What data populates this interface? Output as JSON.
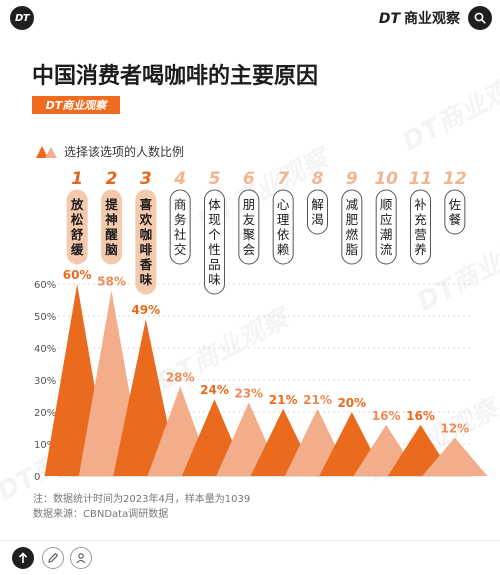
{
  "header": {
    "logo_text": "DT",
    "brand_label": "商业观察",
    "brand_dt": "DT"
  },
  "title": "中国消费者喝咖啡的主要原因",
  "title_brand": "DT商业观察",
  "legend_label": "选择该选项的人数比例",
  "chart_data": {
    "type": "area",
    "title": "中国消费者喝咖啡的主要原因",
    "ylabel": "",
    "xlabel": "",
    "ylim": [
      0,
      65
    ],
    "yticks": [
      0,
      10,
      20,
      30,
      40,
      50,
      60
    ],
    "ytick_labels": [
      "0",
      "10%",
      "20%",
      "30%",
      "40%",
      "50%",
      "60%"
    ],
    "categories": [
      "放松舒缓",
      "提神醒脑",
      "喜欢咖啡香味",
      "商务社交",
      "体现个性品味",
      "朋友聚会",
      "心理依赖",
      "解渴",
      "减肥燃脂",
      "顺应潮流",
      "补充营养",
      "佐餐"
    ],
    "ranks": [
      "1",
      "2",
      "3",
      "4",
      "5",
      "6",
      "7",
      "8",
      "9",
      "10",
      "11",
      "12"
    ],
    "values": [
      60,
      58,
      49,
      28,
      24,
      23,
      21,
      21,
      20,
      16,
      16,
      12
    ],
    "value_labels": [
      "60%",
      "58%",
      "49%",
      "28%",
      "24%",
      "23%",
      "21%",
      "21%",
      "20%",
      "16%",
      "16%",
      "12%"
    ],
    "series": [
      {
        "name": "选择该选项的人数比例",
        "values": [
          60,
          58,
          49,
          28,
          24,
          23,
          21,
          21,
          20,
          16,
          16,
          12
        ]
      }
    ],
    "colors": {
      "dark": "#ea6a1e",
      "light": "#f3ad8a",
      "rank_top": "#e1661e",
      "rank_rest": "#f2b591"
    },
    "grid": true
  },
  "notes": {
    "note": "注：数据统计时间为2023年4月，样本量为1039",
    "source": "数据来源：CBNData调研数据"
  },
  "icons": {
    "search": "search-icon",
    "share": "share-icon",
    "edit": "edit-icon",
    "user": "user-icon"
  },
  "watermark_text": "DT商业观察"
}
